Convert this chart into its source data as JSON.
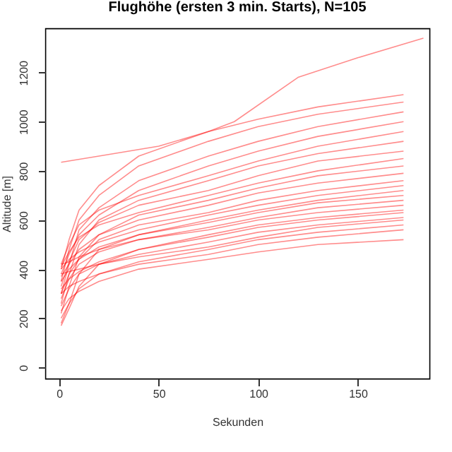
{
  "chart_data": {
    "type": "line",
    "title": "Flughöhe (ersten 3 min. Starts), N=105",
    "xlabel": "Sekunden",
    "ylabel": "Altitude [m]",
    "xlim": [
      -7,
      186
    ],
    "ylim": [
      -45,
      1380
    ],
    "xticks": [
      0,
      50,
      100,
      150
    ],
    "yticks": [
      0,
      200,
      400,
      600,
      800,
      1000,
      1200
    ],
    "grid": false,
    "legend": false,
    "marker": "none",
    "line_style": "solid",
    "series": [
      {
        "color": "#ff0000",
        "x": [
          1,
          20,
          50,
          75,
          88,
          120,
          150,
          183
        ],
        "values": [
          835,
          860,
          900,
          960,
          1000,
          1180,
          1260,
          1340
        ]
      },
      {
        "color": "#ff0000",
        "x": [
          1,
          5,
          10,
          20,
          40,
          75,
          100,
          130,
          173
        ],
        "values": [
          400,
          520,
          640,
          740,
          860,
          960,
          1010,
          1060,
          1110
        ]
      },
      {
        "color": "#ff0000",
        "x": [
          1,
          5,
          10,
          20,
          40,
          75,
          100,
          130,
          173
        ],
        "values": [
          350,
          480,
          600,
          700,
          820,
          920,
          980,
          1030,
          1080
        ]
      },
      {
        "color": "#ff0000",
        "x": [
          1,
          5,
          10,
          20,
          40,
          75,
          100,
          130,
          173
        ],
        "values": [
          300,
          420,
          560,
          650,
          760,
          860,
          920,
          980,
          1040
        ]
      },
      {
        "color": "#ff0000",
        "x": [
          1,
          5,
          10,
          20,
          40,
          75,
          100,
          130,
          173
        ],
        "values": [
          380,
          460,
          540,
          620,
          720,
          820,
          880,
          940,
          1000
        ]
      },
      {
        "color": "#ff0000",
        "x": [
          1,
          5,
          10,
          20,
          40,
          75,
          100,
          130,
          173
        ],
        "values": [
          420,
          500,
          580,
          640,
          700,
          780,
          840,
          900,
          960
        ]
      },
      {
        "color": "#ff0000",
        "x": [
          1,
          5,
          10,
          20,
          40,
          75,
          100,
          130,
          173
        ],
        "values": [
          260,
          380,
          500,
          600,
          680,
          760,
          820,
          870,
          920
        ]
      },
      {
        "color": "#ff0000",
        "x": [
          1,
          5,
          10,
          20,
          40,
          75,
          100,
          130,
          173
        ],
        "values": [
          330,
          430,
          520,
          590,
          660,
          720,
          780,
          840,
          880
        ]
      },
      {
        "color": "#ff0000",
        "x": [
          1,
          5,
          10,
          20,
          40,
          75,
          100,
          130,
          173
        ],
        "values": [
          410,
          470,
          530,
          580,
          630,
          700,
          750,
          800,
          850
        ]
      },
      {
        "color": "#ff0000",
        "x": [
          1,
          5,
          10,
          20,
          40,
          75,
          100,
          130,
          173
        ],
        "values": [
          220,
          330,
          450,
          540,
          620,
          680,
          730,
          780,
          820
        ]
      },
      {
        "color": "#ff0000",
        "x": [
          1,
          5,
          10,
          20,
          40,
          75,
          100,
          130,
          173
        ],
        "values": [
          370,
          420,
          480,
          540,
          600,
          660,
          710,
          750,
          790
        ]
      },
      {
        "color": "#ff0000",
        "x": [
          1,
          5,
          10,
          20,
          40,
          75,
          100,
          130,
          173
        ],
        "values": [
          300,
          380,
          440,
          520,
          580,
          630,
          680,
          720,
          760
        ]
      },
      {
        "color": "#ff0000",
        "x": [
          1,
          5,
          10,
          20,
          40,
          75,
          100,
          130,
          173
        ],
        "values": [
          400,
          440,
          470,
          510,
          560,
          620,
          660,
          700,
          740
        ]
      },
      {
        "color": "#ff0000",
        "x": [
          1,
          5,
          10,
          20,
          40,
          75,
          100,
          130,
          173
        ],
        "values": [
          180,
          260,
          380,
          480,
          540,
          600,
          640,
          680,
          720
        ]
      },
      {
        "color": "#ff0000",
        "x": [
          1,
          5,
          10,
          20,
          40,
          75,
          100,
          130,
          173
        ],
        "values": [
          350,
          400,
          440,
          490,
          540,
          590,
          630,
          670,
          700
        ]
      },
      {
        "color": "#ff0000",
        "x": [
          1,
          5,
          10,
          20,
          40,
          75,
          100,
          130,
          173
        ],
        "values": [
          280,
          360,
          420,
          470,
          520,
          570,
          610,
          650,
          680
        ]
      },
      {
        "color": "#ff0000",
        "x": [
          1,
          5,
          10,
          20,
          40,
          75,
          100,
          130,
          173
        ],
        "values": [
          420,
          430,
          450,
          480,
          520,
          560,
          600,
          630,
          660
        ]
      },
      {
        "color": "#ff0000",
        "x": [
          1,
          5,
          10,
          20,
          40,
          75,
          100,
          130,
          173
        ],
        "values": [
          170,
          240,
          330,
          420,
          480,
          540,
          580,
          610,
          640
        ]
      },
      {
        "color": "#ff0000",
        "x": [
          1,
          5,
          10,
          20,
          40,
          75,
          100,
          130,
          173
        ],
        "values": [
          320,
          360,
          390,
          430,
          480,
          530,
          570,
          600,
          630
        ]
      },
      {
        "color": "#ff0000",
        "x": [
          1,
          5,
          10,
          20,
          40,
          75,
          100,
          130,
          173
        ],
        "values": [
          250,
          320,
          380,
          420,
          460,
          510,
          550,
          580,
          610
        ]
      },
      {
        "color": "#ff0000",
        "x": [
          1,
          5,
          10,
          20,
          40,
          75,
          100,
          130,
          173
        ],
        "values": [
          380,
          390,
          400,
          420,
          450,
          490,
          530,
          570,
          600
        ]
      },
      {
        "color": "#ff0000",
        "x": [
          1,
          5,
          10,
          20,
          40,
          75,
          100,
          130,
          173
        ],
        "values": [
          200,
          260,
          320,
          380,
          430,
          480,
          520,
          550,
          580
        ]
      },
      {
        "color": "#ff0000",
        "x": [
          1,
          5,
          10,
          20,
          40,
          75,
          100,
          130,
          173
        ],
        "values": [
          300,
          330,
          350,
          380,
          420,
          460,
          500,
          530,
          560
        ]
      },
      {
        "color": "#ff0000",
        "x": [
          1,
          5,
          10,
          20,
          40,
          75,
          100,
          130,
          173
        ],
        "values": [
          230,
          280,
          310,
          350,
          400,
          440,
          470,
          500,
          520
        ]
      }
    ]
  }
}
